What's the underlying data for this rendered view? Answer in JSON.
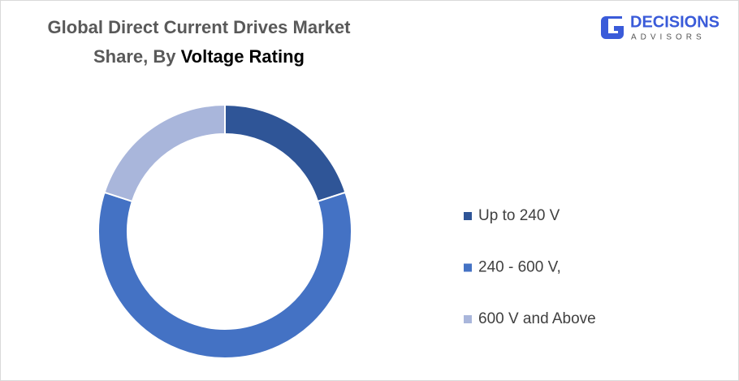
{
  "chart_data": {
    "type": "donut",
    "title_lines": [
      "Global Direct Current Drives Market",
      "Share, By"
    ],
    "title_highlight": "Voltage Rating",
    "categories": [
      "Up to 240 V",
      "240 - 600 V,",
      "600 V and Above"
    ],
    "values": [
      20,
      60,
      20
    ],
    "colors": [
      "#2f5597",
      "#4472c4",
      "#a9b6db"
    ],
    "legend": "right"
  },
  "logo": {
    "name": "DECISIONS",
    "tagline": "ADVISORS"
  }
}
